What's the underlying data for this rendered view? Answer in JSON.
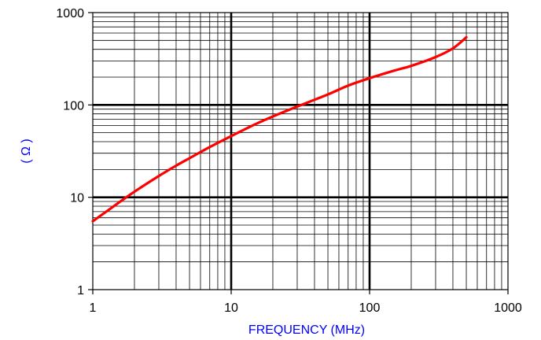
{
  "chart_data": {
    "type": "line",
    "title": "",
    "xlabel": "FREQUENCY (MHz)",
    "ylabel": "( Ω )",
    "x_scale": "log",
    "y_scale": "log",
    "xlim": [
      1,
      1000
    ],
    "ylim": [
      1,
      1000
    ],
    "x_ticks": [
      "1",
      "10",
      "100",
      "1000"
    ],
    "y_ticks": [
      "1",
      "10",
      "100",
      "1000"
    ],
    "grid": true,
    "legend": "none",
    "series": [
      {
        "color": "#ff0000",
        "x": [
          1,
          1.5,
          2,
          3,
          4,
          5,
          7,
          10,
          15,
          20,
          30,
          50,
          70,
          100,
          150,
          200,
          300,
          400,
          500
        ],
        "y": [
          5.5,
          8.5,
          11.5,
          17,
          22,
          26.5,
          35,
          46,
          62,
          75,
          96,
          130,
          162,
          195,
          235,
          265,
          330,
          410,
          540
        ]
      }
    ]
  },
  "colors": {
    "axis_label": "#0000ff",
    "grid": "#000000",
    "series": "#ff0000"
  }
}
